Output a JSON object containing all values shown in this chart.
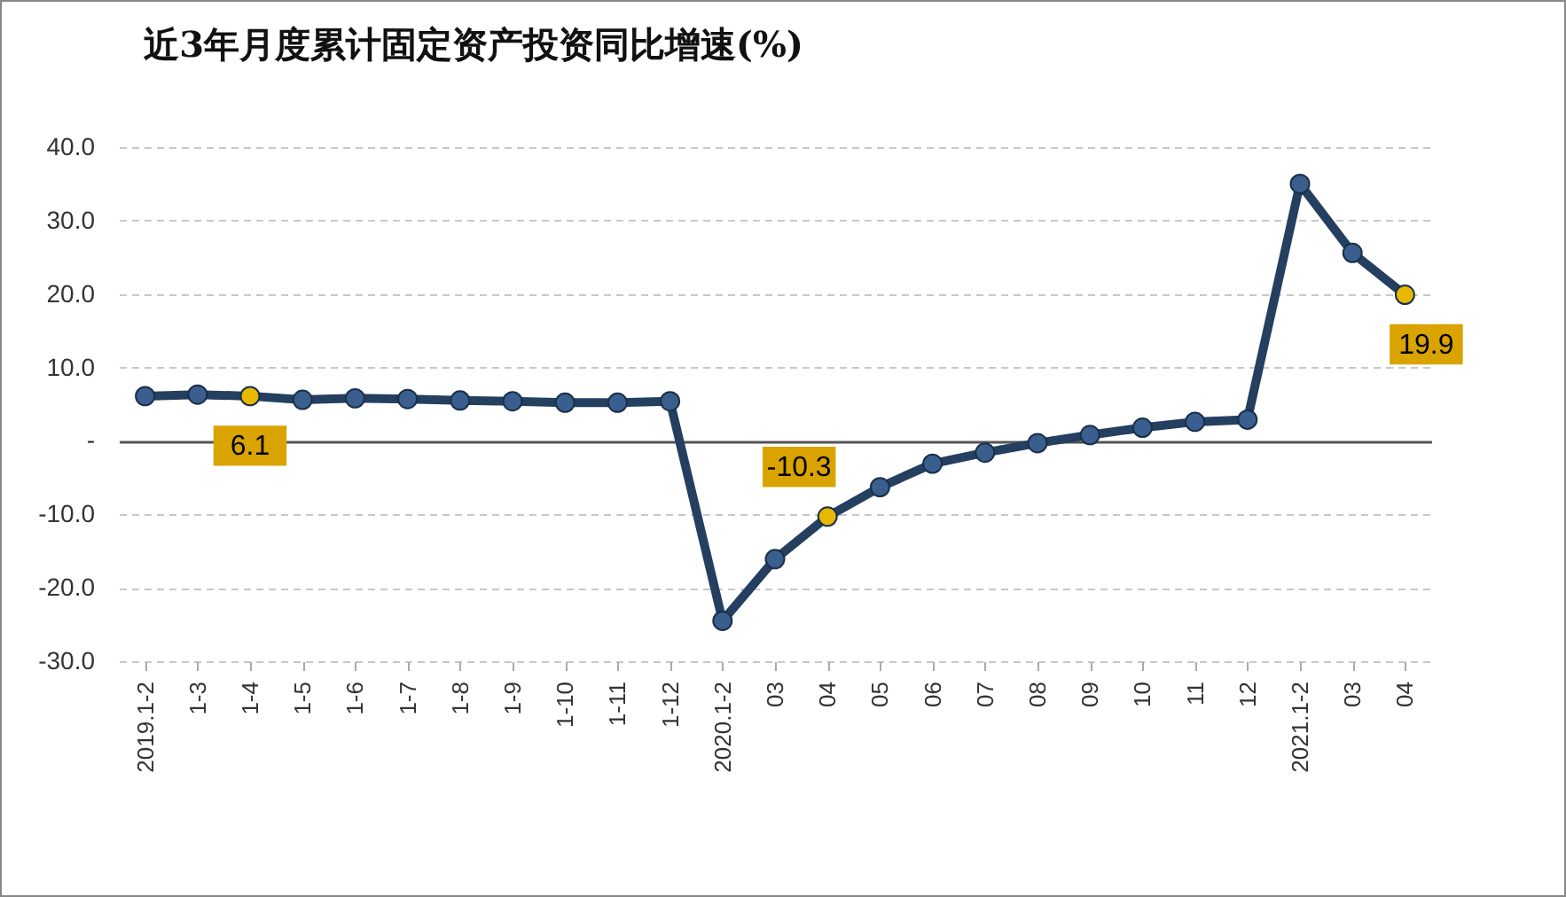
{
  "chart_data": {
    "type": "line",
    "title": "近3年月度累计固定资产投资同比增速(%)",
    "categories": [
      "2019.1-2",
      "1-3",
      "1-4",
      "1-5",
      "1-6",
      "1-7",
      "1-8",
      "1-9",
      "1-10",
      "1-11",
      "1-12",
      "2020.1-2",
      "03",
      "04",
      "05",
      "06",
      "07",
      "08",
      "09",
      "10",
      "11",
      "12",
      "2021.1-2",
      "03",
      "04"
    ],
    "values": [
      6.1,
      6.3,
      6.1,
      5.6,
      5.8,
      5.7,
      5.5,
      5.4,
      5.2,
      5.2,
      5.4,
      -24.5,
      -16.1,
      -10.3,
      -6.3,
      -3.1,
      -1.6,
      -0.3,
      0.8,
      1.8,
      2.6,
      2.9,
      35.0,
      25.6,
      19.9
    ],
    "color": "#243f60",
    "colors": [
      "#3a5f8f",
      "#3a5f8f",
      "#e6b800",
      "#3a5f8f",
      "#3a5f8f",
      "#3a5f8f",
      "#3a5f8f",
      "#3a5f8f",
      "#3a5f8f",
      "#3a5f8f",
      "#3a5f8f",
      "#3a5f8f",
      "#3a5f8f",
      "#e6b800",
      "#3a5f8f",
      "#3a5f8f",
      "#3a5f8f",
      "#3a5f8f",
      "#3a5f8f",
      "#3a5f8f",
      "#3a5f8f",
      "#3a5f8f",
      "#3a5f8f",
      "#3a5f8f",
      "#e6b800"
    ],
    "value_labels": [
      null,
      null,
      "6.1",
      null,
      null,
      null,
      null,
      null,
      null,
      null,
      null,
      null,
      null,
      "-10.3",
      null,
      null,
      null,
      null,
      null,
      null,
      null,
      null,
      null,
      null,
      "19.9"
    ],
    "ylim": [
      -30,
      40
    ],
    "yticks": [
      {
        "value": -30,
        "label": "-30.0"
      },
      {
        "value": -20,
        "label": "-20.0"
      },
      {
        "value": -10,
        "label": "-10.0"
      },
      {
        "value": 0,
        "label": "-"
      },
      {
        "value": 10,
        "label": "10.0"
      },
      {
        "value": 20,
        "label": "20.0"
      },
      {
        "value": 30,
        "label": "30.0"
      },
      {
        "value": 40,
        "label": "40.0"
      }
    ],
    "grid": "y",
    "marker": "circle",
    "line_style": "solid"
  }
}
